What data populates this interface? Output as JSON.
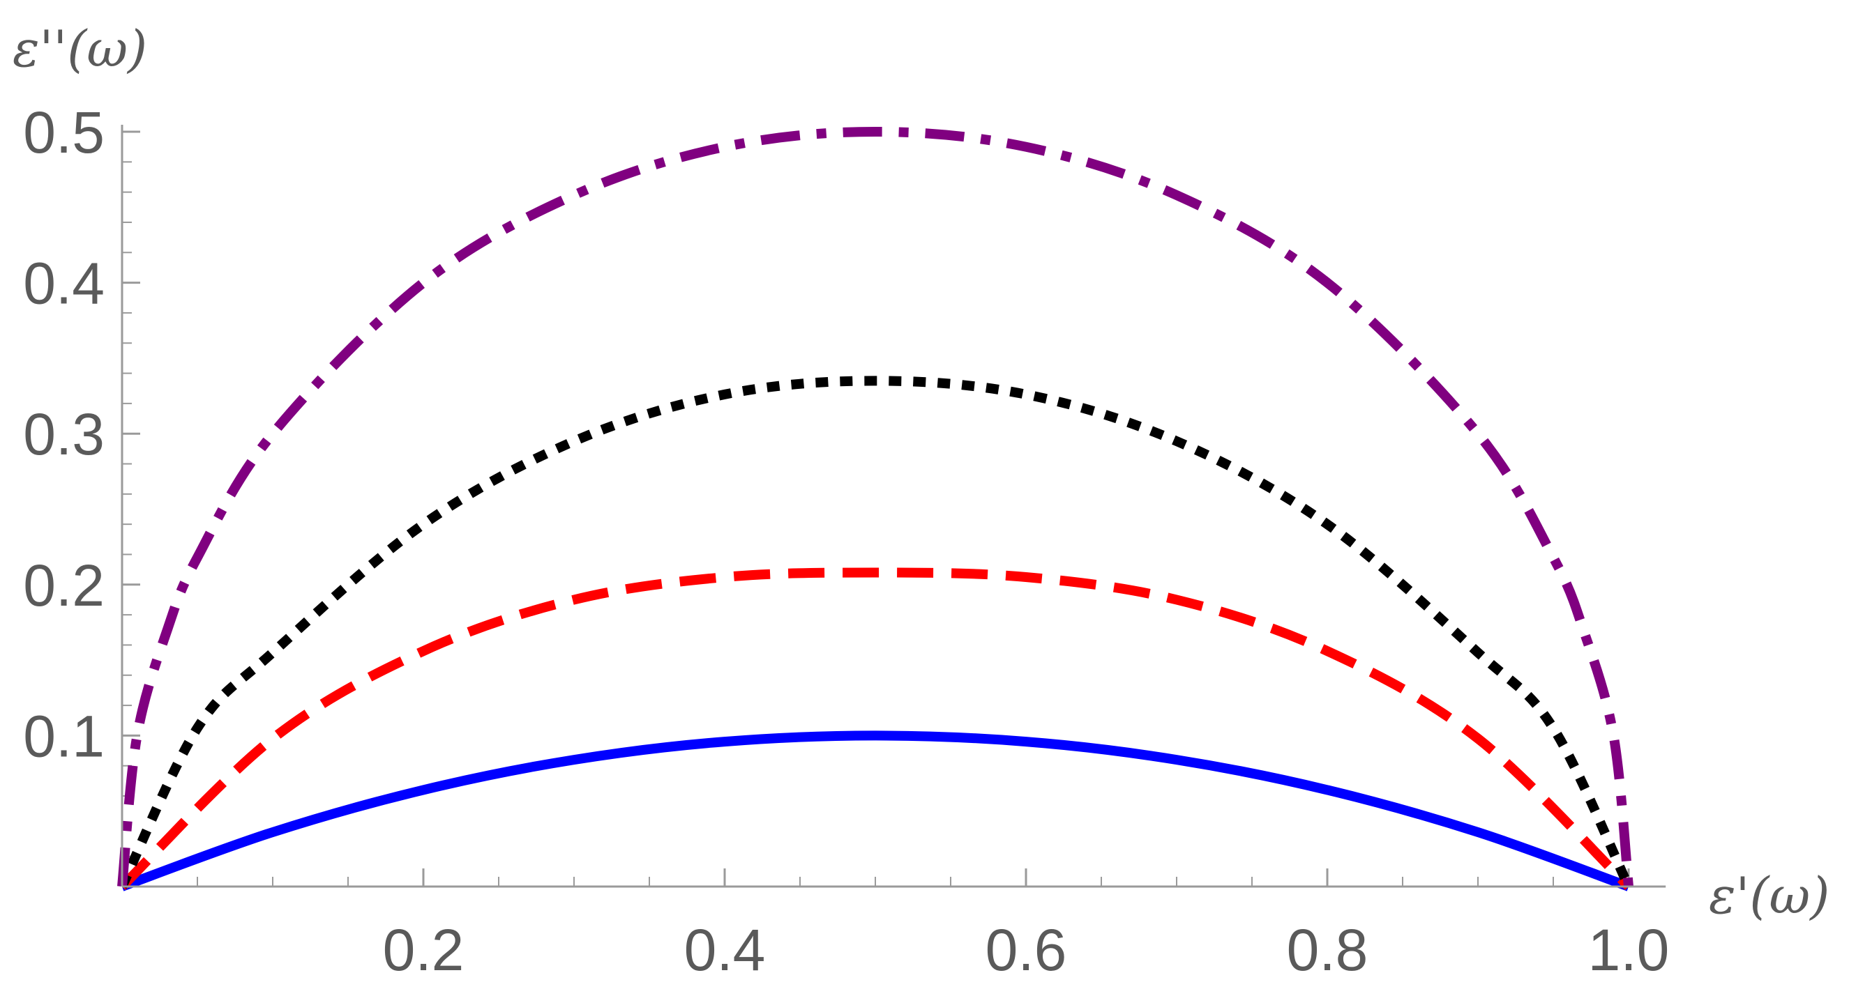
{
  "chart_data": {
    "type": "line",
    "xlabel": "ε'(ω)",
    "ylabel": "ε''(ω)",
    "xlim": [
      0,
      1.02
    ],
    "ylim": [
      0,
      0.5
    ],
    "x_ticks": [
      0.2,
      0.4,
      0.6,
      0.8,
      1.0
    ],
    "x_tick_labels": [
      "0.2",
      "0.4",
      "0.6",
      "0.8",
      "1.0"
    ],
    "y_ticks": [
      0.1,
      0.2,
      0.3,
      0.4,
      0.5
    ],
    "y_tick_labels": [
      "0.1",
      "0.2",
      "0.3",
      "0.4",
      "0.5"
    ],
    "grid": false,
    "legend": "none",
    "series": [
      {
        "style": "solid",
        "color": "#0000ff",
        "x": [
          0,
          0.1,
          0.2,
          0.3,
          0.4,
          0.5,
          0.6,
          0.7,
          0.8,
          0.9,
          1.0
        ],
        "y": [
          0,
          0.036,
          0.064,
          0.084,
          0.096,
          0.1,
          0.096,
          0.084,
          0.064,
          0.036,
          0
        ]
      },
      {
        "style": "dashed",
        "color": "#ff0000",
        "x": [
          0,
          0.1,
          0.2,
          0.3,
          0.4,
          0.5,
          0.6,
          0.7,
          0.8,
          0.9,
          1.0
        ],
        "y": [
          0,
          0.098,
          0.156,
          0.19,
          0.205,
          0.208,
          0.205,
          0.19,
          0.156,
          0.098,
          0
        ]
      },
      {
        "style": "dotted",
        "color": "#000000",
        "x": [
          0,
          0.05,
          0.1,
          0.2,
          0.3,
          0.4,
          0.5,
          0.6,
          0.7,
          0.8,
          0.9,
          0.95,
          1.0
        ],
        "y": [
          0,
          0.105,
          0.155,
          0.24,
          0.295,
          0.326,
          0.335,
          0.326,
          0.295,
          0.24,
          0.155,
          0.105,
          0
        ]
      },
      {
        "style": "dashdot",
        "color": "#800080",
        "x": [
          0,
          0.01,
          0.03,
          0.05,
          0.1,
          0.2,
          0.3,
          0.4,
          0.5,
          0.6,
          0.7,
          0.8,
          0.9,
          0.95,
          0.97,
          0.99,
          1.0
        ],
        "y": [
          0,
          0.1,
          0.17,
          0.218,
          0.3,
          0.4,
          0.458,
          0.49,
          0.5,
          0.49,
          0.458,
          0.4,
          0.3,
          0.218,
          0.17,
          0.1,
          0
        ]
      }
    ]
  }
}
